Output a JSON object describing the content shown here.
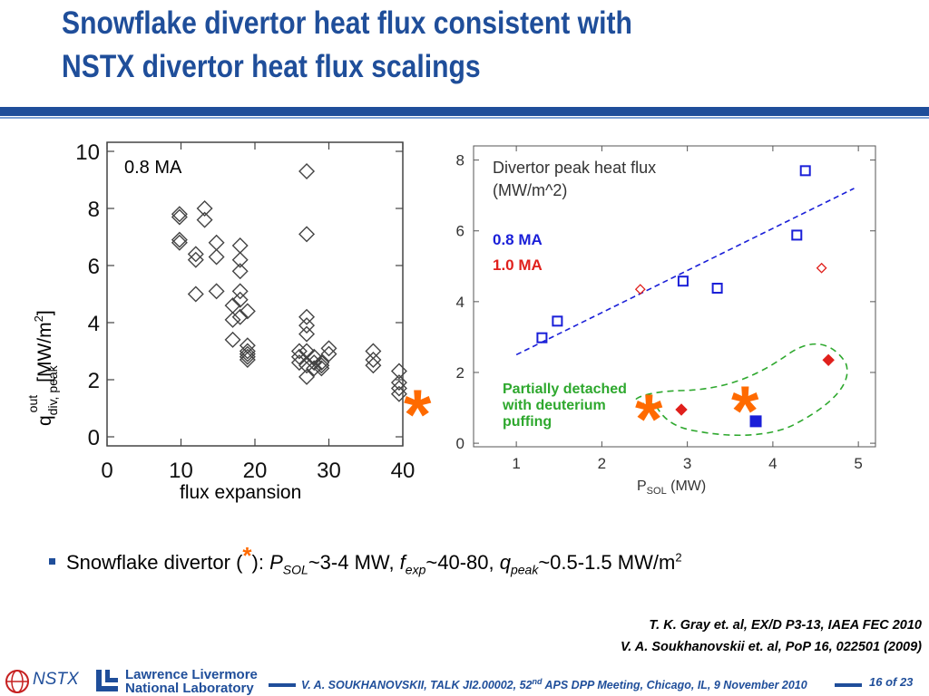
{
  "title_line1": "Snowflake divertor heat flux consistent with",
  "title_line2": "NSTX divertor heat flux scalings",
  "colors": {
    "brand_blue": "#1f4e9a",
    "series_blue": "#1a1fd8",
    "series_red": "#e0201c",
    "detached_green": "#2ea82e",
    "star_orange": "#ff6a00"
  },
  "chart_data": [
    {
      "type": "scatter",
      "annotation": "0.8 MA",
      "xlabel": "flux expansion",
      "ylabel": "q div, peak out [MW/m2]",
      "ylabel_main": "q",
      "ylabel_sub": "div, peak",
      "ylabel_sup": "out",
      "ylabel_units": "[MW/m",
      "ylabel_units_exp": "2",
      "ylabel_units_close": "]",
      "xlim": [
        0,
        40
      ],
      "ylim": [
        0,
        10
      ],
      "xticks": [
        "0",
        "10",
        "20",
        "30",
        "40"
      ],
      "yticks": [
        "0",
        "2",
        "4",
        "6",
        "8",
        "10"
      ],
      "points": [
        [
          9.8,
          7.8
        ],
        [
          9.8,
          7.7
        ],
        [
          9.8,
          6.9
        ],
        [
          9.8,
          6.8
        ],
        [
          12,
          6.4
        ],
        [
          12,
          6.2
        ],
        [
          12,
          5.0
        ],
        [
          13.2,
          8.0
        ],
        [
          13.2,
          7.6
        ],
        [
          14.8,
          6.8
        ],
        [
          14.8,
          6.3
        ],
        [
          14.8,
          5.1
        ],
        [
          17,
          4.6
        ],
        [
          17,
          4.1
        ],
        [
          17,
          3.4
        ],
        [
          18,
          6.7
        ],
        [
          18,
          6.2
        ],
        [
          18,
          5.8
        ],
        [
          18,
          5.1
        ],
        [
          18,
          4.8
        ],
        [
          18,
          4.2
        ],
        [
          19,
          4.4
        ],
        [
          19,
          3.2
        ],
        [
          19,
          3.0
        ],
        [
          19,
          2.9
        ],
        [
          19,
          2.8
        ],
        [
          19,
          2.7
        ],
        [
          26,
          3.0
        ],
        [
          26,
          2.8
        ],
        [
          26,
          2.6
        ],
        [
          27,
          9.3
        ],
        [
          27,
          7.1
        ],
        [
          27,
          4.2
        ],
        [
          27,
          3.9
        ],
        [
          27,
          3.6
        ],
        [
          27,
          3.0
        ],
        [
          27,
          2.5
        ],
        [
          27,
          2.1
        ],
        [
          28,
          2.8
        ],
        [
          28,
          2.6
        ],
        [
          28,
          2.4
        ],
        [
          29,
          2.6
        ],
        [
          29,
          2.5
        ],
        [
          29,
          2.4
        ],
        [
          30,
          3.1
        ],
        [
          30,
          2.9
        ],
        [
          36,
          3.0
        ],
        [
          36,
          2.7
        ],
        [
          36,
          2.5
        ],
        [
          39.5,
          2.3
        ],
        [
          39.5,
          1.9
        ],
        [
          39.5,
          1.7
        ],
        [
          39.5,
          1.5
        ]
      ]
    },
    {
      "type": "scatter",
      "title": "Divertor peak heat flux",
      "subtitle": "(MW/m^2)",
      "xlabel": "P",
      "xlabel_sub": "SOL",
      "xlabel_units": " (MW)",
      "xlim": [
        0.5,
        5.2
      ],
      "ylim": [
        -0.1,
        8.4
      ],
      "xticks": [
        1,
        2,
        3,
        4,
        5
      ],
      "yticks": [
        0,
        2,
        4,
        6,
        8
      ],
      "series": [
        {
          "name": "0.8 MA",
          "marker": "open-square",
          "color": "#1a1fd8",
          "x": [
            1.3,
            1.48,
            2.95,
            3.35,
            4.28,
            4.38
          ],
          "y": [
            2.98,
            3.45,
            4.58,
            4.38,
            5.88,
            7.7
          ]
        },
        {
          "name": "1.0 MA",
          "marker": "open-diamond",
          "color": "#e0201c",
          "x": [
            2.45,
            4.57
          ],
          "y": [
            4.35,
            4.95
          ]
        },
        {
          "marker": "filled-diamond",
          "color": "#e0201c",
          "x": [
            2.93,
            4.65
          ],
          "y": [
            0.95,
            2.35
          ]
        },
        {
          "marker": "filled-square",
          "color": "#1a1fd8",
          "x": [
            3.8
          ],
          "y": [
            0.62
          ]
        }
      ],
      "fit_line": {
        "x": [
          1.0,
          4.95
        ],
        "y": [
          2.5,
          7.2
        ],
        "color": "#1a1fd8"
      },
      "detached_label": [
        "Partially detached",
        "with deuterium",
        "puffing"
      ]
    }
  ],
  "big_star": "*",
  "bullet": {
    "prefix": "Snowflake divertor (",
    "star": "*",
    "mid": "): ",
    "p": "P",
    "p_sub": "SOL",
    "p_val": "~3-4 MW, ",
    "f": "f",
    "f_sub": "exp",
    "f_val": "~40-80, ",
    "q": "q",
    "q_sub": "peak",
    "q_val": "~0.5-1.5 MW/m",
    "q_exp": "2"
  },
  "references": [
    "T. K. Gray et. al, EX/D P3-13, IAEA FEC 2010",
    "V. A. Soukhanovskii et. al, PoP 16, 022501 (2009)"
  ],
  "footer": {
    "nstx": "NSTX",
    "llnl_line1": "Lawrence Livermore",
    "llnl_line2": "National Laboratory",
    "talk_pre": "V. A. SOUKHANOVSKII, TALK JI2.00002, 52",
    "talk_sup": "nd",
    "talk_post": " APS DPP Meeting, Chicago, IL, 9 November 2010",
    "page": "16 of 23"
  }
}
